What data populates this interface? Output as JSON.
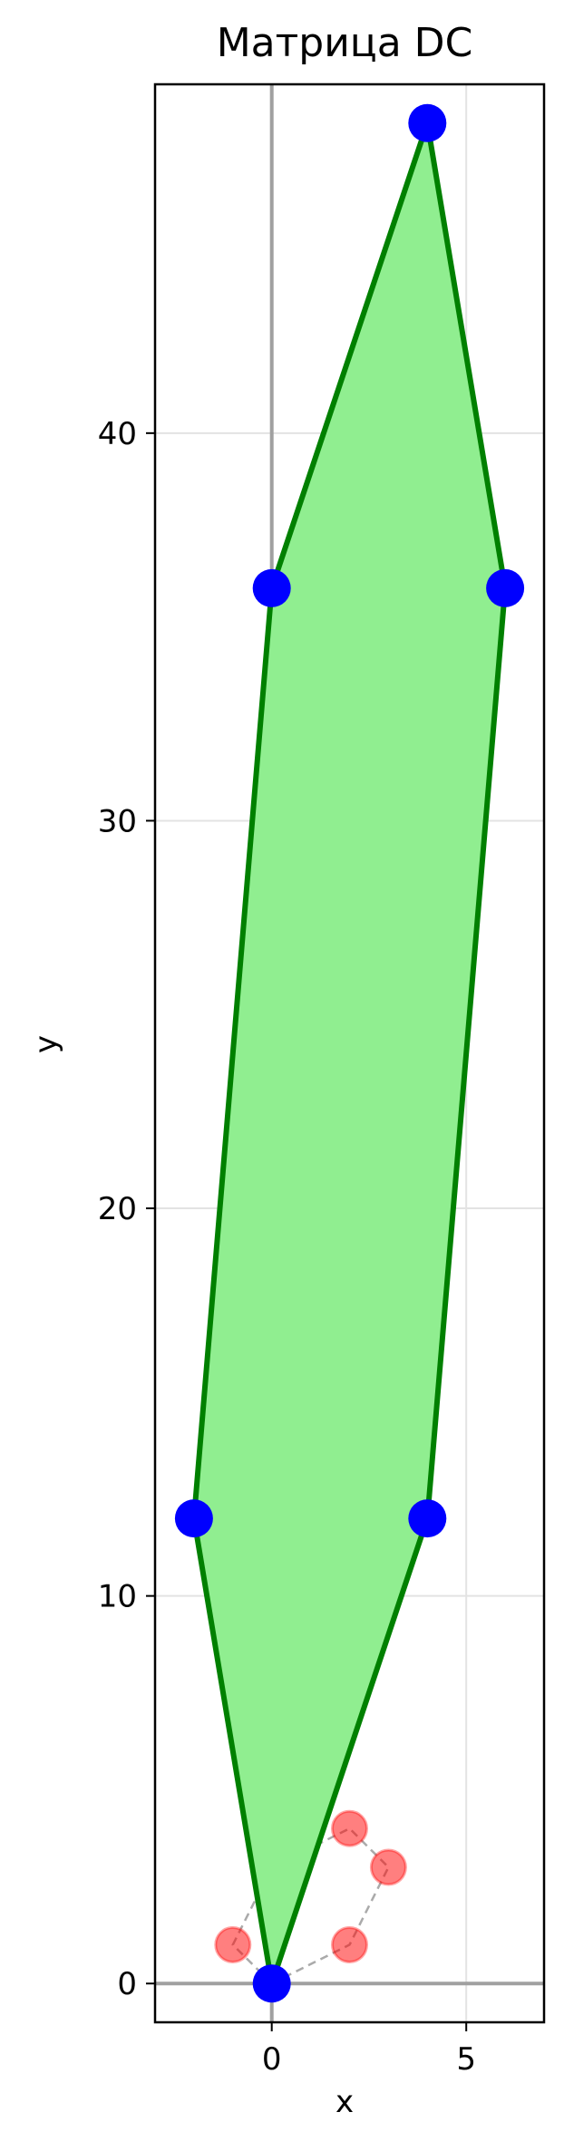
{
  "chart_data": {
    "type": "scatter",
    "title": "Матрица DC",
    "xlabel": "x",
    "ylabel": "y",
    "xlim": [
      -3,
      7
    ],
    "ylim": [
      -1,
      49
    ],
    "x_ticks": [
      0,
      5
    ],
    "y_ticks": [
      0,
      10,
      20,
      30,
      40
    ],
    "grid": true,
    "legend": "none",
    "series": [
      {
        "role": "transformed-polygon",
        "color": "#0000ff",
        "edge_color": "#008000",
        "fill_color": "#90ee90",
        "points": [
          [
            0,
            0
          ],
          [
            4,
            12
          ],
          [
            6,
            36
          ],
          [
            4,
            48
          ],
          [
            0,
            36
          ],
          [
            -2,
            12
          ]
        ]
      },
      {
        "role": "original-polygon",
        "color": "#ff0000",
        "edge_color": "#aaaaaa",
        "points": [
          [
            0,
            0
          ],
          [
            2,
            1
          ],
          [
            3,
            3
          ],
          [
            2,
            4
          ],
          [
            0,
            3
          ],
          [
            -1,
            1
          ]
        ]
      }
    ]
  }
}
